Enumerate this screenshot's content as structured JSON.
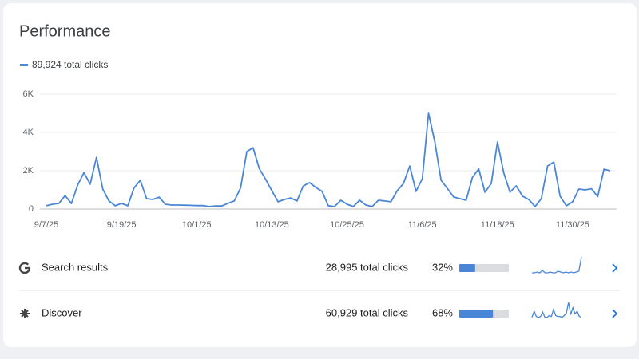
{
  "chart_data": {
    "type": "line",
    "title": "Performance",
    "legend_label": "89,924 total clicks",
    "x": [
      0,
      1,
      2,
      3,
      4,
      5,
      6,
      7,
      8,
      9,
      10,
      11,
      12,
      13,
      14,
      15,
      16,
      17,
      18,
      19,
      20,
      21,
      22,
      23,
      24,
      25,
      26,
      27,
      28,
      29,
      30,
      31,
      32,
      33,
      34,
      35,
      36,
      37,
      38,
      39,
      40,
      41,
      42,
      43,
      44,
      45,
      46,
      47,
      48,
      49,
      50,
      51,
      52,
      53,
      54,
      55,
      56,
      57,
      58,
      59,
      60,
      61,
      62,
      63,
      64,
      65,
      66,
      67,
      68,
      69,
      70,
      71,
      72,
      73,
      74,
      75,
      76,
      77,
      78,
      79,
      80,
      81,
      82,
      83,
      84,
      85,
      86,
      87,
      88,
      89,
      90
    ],
    "series": [
      {
        "color": "#4a86d8",
        "values": [
          170,
          250,
          290,
          700,
          290,
          1250,
          1900,
          1300,
          2700,
          1050,
          420,
          170,
          290,
          170,
          1100,
          1500,
          540,
          500,
          620,
          250,
          210,
          210,
          200,
          190,
          180,
          180,
          130,
          160,
          160,
          300,
          420,
          1100,
          3000,
          3200,
          2100,
          1550,
          950,
          380,
          500,
          580,
          420,
          1200,
          1380,
          1130,
          920,
          170,
          130,
          460,
          250,
          130,
          460,
          210,
          130,
          460,
          420,
          380,
          960,
          1330,
          2250,
          920,
          1580,
          5000,
          3500,
          1500,
          1080,
          630,
          540,
          460,
          1650,
          2100,
          880,
          1330,
          3500,
          1900,
          880,
          1210,
          670,
          500,
          130,
          540,
          2250,
          2450,
          670,
          170,
          380,
          1040,
          1000,
          1060,
          650,
          2080,
          2000
        ]
      }
    ],
    "xlim": [
      0,
      90
    ],
    "xticks": [
      {
        "value": 0,
        "label": "9/7/25"
      },
      {
        "value": 12,
        "label": "9/19/25"
      },
      {
        "value": 24,
        "label": "10/1/25"
      },
      {
        "value": 36,
        "label": "10/13/25"
      },
      {
        "value": 48,
        "label": "10/25/25"
      },
      {
        "value": 60,
        "label": "11/6/25"
      },
      {
        "value": 72,
        "label": "11/18/25"
      },
      {
        "value": 84,
        "label": "11/30/25"
      }
    ],
    "ylim": [
      0,
      6000
    ],
    "yticks": [
      0,
      {
        "value": 2000,
        "label": "2K"
      },
      {
        "value": 4000,
        "label": "4K"
      },
      {
        "value": 6000,
        "label": "6K"
      }
    ],
    "grid": true
  },
  "rows": [
    {
      "name": "Search results",
      "clicks": "28,995 total clicks",
      "share": 32,
      "share_label": "32%",
      "bar_color": "#4a86d8",
      "sparkline": [
        2,
        2,
        3,
        2,
        5,
        2,
        2,
        3,
        2,
        2,
        4,
        3,
        2,
        3,
        2,
        3,
        2,
        3,
        4,
        22
      ]
    },
    {
      "name": "Discover",
      "clicks": "60,929 total clicks",
      "share": 68,
      "share_label": "68%",
      "bar_color": "#4a86d8",
      "sparkline": [
        3,
        10,
        4,
        3,
        4,
        9,
        3,
        3,
        5,
        4,
        12,
        5,
        4,
        4,
        3,
        5,
        8,
        20,
        6,
        14,
        7,
        10,
        4,
        3
      ]
    }
  ]
}
